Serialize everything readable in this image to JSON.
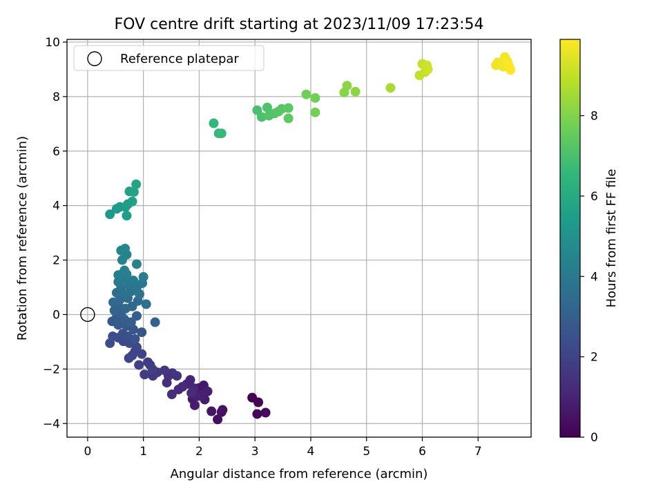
{
  "chart_data": {
    "type": "scatter",
    "title": "FOV centre drift starting at 2023/11/09 17:23:54",
    "xlabel": "Angular distance from reference (arcmin)",
    "ylabel": "Rotation from reference (arcmin)",
    "xlim": [
      -0.37,
      7.95
    ],
    "ylim": [
      -4.5,
      10.1
    ],
    "xticks": [
      0,
      1,
      2,
      3,
      4,
      5,
      6,
      7
    ],
    "yticks": [
      -4,
      -2,
      0,
      2,
      4,
      6,
      8,
      10
    ],
    "grid": true,
    "legend": {
      "position": "top-left",
      "entries": [
        {
          "label": "Reference platepar",
          "marker": "open-circle"
        }
      ]
    },
    "reference_point": {
      "x": 0,
      "y": 0
    },
    "colorbar": {
      "label": "Hours from first FF file",
      "colormap": "viridis",
      "range": [
        0,
        9.9
      ],
      "ticks": [
        0,
        2,
        4,
        6,
        8
      ]
    },
    "colormap_stops": [
      "#440154",
      "#482878",
      "#3e4989",
      "#31688e",
      "#26828e",
      "#1f9e89",
      "#35b779",
      "#6ece58",
      "#b5de2b",
      "#fde725"
    ],
    "points": [
      {
        "x": 2.95,
        "y": -3.05,
        "h": 0.0
      },
      {
        "x": 3.06,
        "y": -3.22,
        "h": 0.1
      },
      {
        "x": 3.04,
        "y": -3.65,
        "h": 0.15
      },
      {
        "x": 3.19,
        "y": -3.6,
        "h": 0.2
      },
      {
        "x": 2.33,
        "y": -3.85,
        "h": 0.4
      },
      {
        "x": 2.42,
        "y": -3.5,
        "h": 0.45
      },
      {
        "x": 2.4,
        "y": -3.58,
        "h": 0.5
      },
      {
        "x": 2.22,
        "y": -3.55,
        "h": 0.55
      },
      {
        "x": 1.99,
        "y": -2.7,
        "h": 0.6
      },
      {
        "x": 2.08,
        "y": -2.6,
        "h": 0.65
      },
      {
        "x": 1.88,
        "y": -3.1,
        "h": 0.7
      },
      {
        "x": 1.92,
        "y": -3.33,
        "h": 0.75
      },
      {
        "x": 2.1,
        "y": -3.12,
        "h": 0.8
      },
      {
        "x": 2.15,
        "y": -2.82,
        "h": 0.85
      },
      {
        "x": 2.03,
        "y": -2.95,
        "h": 0.9
      },
      {
        "x": 1.96,
        "y": -3.0,
        "h": 0.95
      },
      {
        "x": 1.84,
        "y": -2.4,
        "h": 1.0
      },
      {
        "x": 1.78,
        "y": -2.55,
        "h": 1.05
      },
      {
        "x": 1.9,
        "y": -2.7,
        "h": 1.1
      },
      {
        "x": 1.7,
        "y": -2.65,
        "h": 1.15
      },
      {
        "x": 1.63,
        "y": -2.75,
        "h": 1.2
      },
      {
        "x": 1.86,
        "y": -2.88,
        "h": 1.25
      },
      {
        "x": 1.51,
        "y": -2.93,
        "h": 1.3
      },
      {
        "x": 1.42,
        "y": -2.5,
        "h": 1.35
      },
      {
        "x": 1.45,
        "y": -2.25,
        "h": 1.4
      },
      {
        "x": 1.52,
        "y": -2.15,
        "h": 1.45
      },
      {
        "x": 1.6,
        "y": -2.25,
        "h": 1.5
      },
      {
        "x": 1.38,
        "y": -2.05,
        "h": 1.55
      },
      {
        "x": 1.25,
        "y": -2.12,
        "h": 1.6
      },
      {
        "x": 1.17,
        "y": -2.25,
        "h": 1.65
      },
      {
        "x": 1.12,
        "y": -1.85,
        "h": 1.7
      },
      {
        "x": 1.08,
        "y": -1.75,
        "h": 1.75
      },
      {
        "x": 1.02,
        "y": -2.2,
        "h": 1.8
      },
      {
        "x": 1.16,
        "y": -2.0,
        "h": 1.85
      },
      {
        "x": 0.92,
        "y": -1.85,
        "h": 1.9
      },
      {
        "x": 0.97,
        "y": -1.45,
        "h": 1.95
      },
      {
        "x": 0.85,
        "y": -1.35,
        "h": 2.0
      },
      {
        "x": 0.74,
        "y": -1.6,
        "h": 2.05
      },
      {
        "x": 0.8,
        "y": -1.5,
        "h": 2.1
      },
      {
        "x": 0.88,
        "y": -1.2,
        "h": 2.15
      },
      {
        "x": 0.75,
        "y": -1.05,
        "h": 2.2
      },
      {
        "x": 0.64,
        "y": -0.98,
        "h": 2.25
      },
      {
        "x": 0.55,
        "y": -0.85,
        "h": 2.3
      },
      {
        "x": 0.4,
        "y": -1.05,
        "h": 2.35
      },
      {
        "x": 0.45,
        "y": -0.8,
        "h": 2.4
      },
      {
        "x": 0.63,
        "y": -0.7,
        "h": 2.45
      },
      {
        "x": 0.72,
        "y": -0.8,
        "h": 2.5
      },
      {
        "x": 0.85,
        "y": -0.9,
        "h": 2.55
      },
      {
        "x": 0.97,
        "y": -0.65,
        "h": 2.6
      },
      {
        "x": 0.82,
        "y": -0.55,
        "h": 2.65
      },
      {
        "x": 0.7,
        "y": -0.42,
        "h": 2.7
      },
      {
        "x": 0.55,
        "y": -0.38,
        "h": 2.75
      },
      {
        "x": 0.44,
        "y": -0.25,
        "h": 2.8
      },
      {
        "x": 0.52,
        "y": -0.1,
        "h": 2.85
      },
      {
        "x": 0.66,
        "y": -0.18,
        "h": 2.9
      },
      {
        "x": 0.78,
        "y": -0.28,
        "h": 2.95
      },
      {
        "x": 0.88,
        "y": -0.05,
        "h": 3.0
      },
      {
        "x": 1.21,
        "y": -0.28,
        "h": 3.05
      },
      {
        "x": 0.6,
        "y": 0.05,
        "h": 3.1
      },
      {
        "x": 0.48,
        "y": 0.15,
        "h": 3.15
      },
      {
        "x": 0.55,
        "y": 0.35,
        "h": 3.2
      },
      {
        "x": 0.68,
        "y": 0.22,
        "h": 3.25
      },
      {
        "x": 0.8,
        "y": 0.3,
        "h": 3.3
      },
      {
        "x": 0.46,
        "y": 0.45,
        "h": 3.35
      },
      {
        "x": 0.58,
        "y": 0.55,
        "h": 3.4
      },
      {
        "x": 0.72,
        "y": 0.6,
        "h": 3.45
      },
      {
        "x": 0.9,
        "y": 0.5,
        "h": 3.5
      },
      {
        "x": 1.05,
        "y": 0.38,
        "h": 3.55
      },
      {
        "x": 0.52,
        "y": 0.8,
        "h": 3.6
      },
      {
        "x": 0.66,
        "y": 0.75,
        "h": 3.65
      },
      {
        "x": 0.78,
        "y": 0.85,
        "h": 3.7
      },
      {
        "x": 0.93,
        "y": 0.75,
        "h": 3.75
      },
      {
        "x": 0.6,
        "y": 1.0,
        "h": 3.8
      },
      {
        "x": 0.75,
        "y": 1.05,
        "h": 3.85
      },
      {
        "x": 0.88,
        "y": 1.0,
        "h": 3.9
      },
      {
        "x": 0.98,
        "y": 1.15,
        "h": 3.95
      },
      {
        "x": 0.55,
        "y": 1.2,
        "h": 4.0
      },
      {
        "x": 0.68,
        "y": 1.3,
        "h": 4.05
      },
      {
        "x": 0.82,
        "y": 1.25,
        "h": 4.1
      },
      {
        "x": 1.0,
        "y": 1.38,
        "h": 4.15
      },
      {
        "x": 0.55,
        "y": 1.45,
        "h": 4.2
      },
      {
        "x": 0.7,
        "y": 1.48,
        "h": 4.25
      },
      {
        "x": 0.66,
        "y": 1.62,
        "h": 4.3
      },
      {
        "x": 0.88,
        "y": 1.85,
        "h": 4.35
      },
      {
        "x": 0.62,
        "y": 2.0,
        "h": 4.4
      },
      {
        "x": 0.7,
        "y": 2.2,
        "h": 4.45
      },
      {
        "x": 0.6,
        "y": 2.35,
        "h": 4.5
      },
      {
        "x": 0.67,
        "y": 2.42,
        "h": 4.55
      },
      {
        "x": 0.4,
        "y": 3.68,
        "h": 5.3
      },
      {
        "x": 0.52,
        "y": 3.88,
        "h": 5.35
      },
      {
        "x": 0.58,
        "y": 3.95,
        "h": 5.4
      },
      {
        "x": 0.68,
        "y": 3.95,
        "h": 5.45
      },
      {
        "x": 0.7,
        "y": 3.63,
        "h": 5.5
      },
      {
        "x": 0.72,
        "y": 4.05,
        "h": 5.55
      },
      {
        "x": 0.8,
        "y": 4.15,
        "h": 5.6
      },
      {
        "x": 0.75,
        "y": 4.52,
        "h": 5.65
      },
      {
        "x": 0.83,
        "y": 4.5,
        "h": 5.7
      },
      {
        "x": 0.87,
        "y": 4.78,
        "h": 5.75
      },
      {
        "x": 2.26,
        "y": 7.02,
        "h": 6.55
      },
      {
        "x": 2.35,
        "y": 6.65,
        "h": 6.6
      },
      {
        "x": 2.4,
        "y": 6.65,
        "h": 6.65
      },
      {
        "x": 3.04,
        "y": 7.5,
        "h": 7.0
      },
      {
        "x": 3.12,
        "y": 7.25,
        "h": 7.05
      },
      {
        "x": 3.22,
        "y": 7.6,
        "h": 7.1
      },
      {
        "x": 3.25,
        "y": 7.3,
        "h": 7.15
      },
      {
        "x": 3.35,
        "y": 7.38,
        "h": 7.2
      },
      {
        "x": 3.42,
        "y": 7.45,
        "h": 7.25
      },
      {
        "x": 3.48,
        "y": 7.55,
        "h": 7.3
      },
      {
        "x": 3.6,
        "y": 7.58,
        "h": 7.35
      },
      {
        "x": 3.6,
        "y": 7.2,
        "h": 7.4
      },
      {
        "x": 3.92,
        "y": 8.08,
        "h": 7.7
      },
      {
        "x": 4.08,
        "y": 7.95,
        "h": 7.75
      },
      {
        "x": 4.08,
        "y": 7.42,
        "h": 7.8
      },
      {
        "x": 4.6,
        "y": 8.15,
        "h": 8.1
      },
      {
        "x": 4.65,
        "y": 8.4,
        "h": 8.15
      },
      {
        "x": 4.8,
        "y": 8.18,
        "h": 8.2
      },
      {
        "x": 5.43,
        "y": 8.32,
        "h": 8.6
      },
      {
        "x": 5.95,
        "y": 8.78,
        "h": 9.0
      },
      {
        "x": 6.0,
        "y": 9.2,
        "h": 9.05
      },
      {
        "x": 6.05,
        "y": 8.9,
        "h": 9.1
      },
      {
        "x": 6.08,
        "y": 9.15,
        "h": 9.15
      },
      {
        "x": 6.1,
        "y": 9.0,
        "h": 9.2
      },
      {
        "x": 7.32,
        "y": 9.15,
        "h": 9.6
      },
      {
        "x": 7.35,
        "y": 9.25,
        "h": 9.65
      },
      {
        "x": 7.45,
        "y": 9.1,
        "h": 9.7
      },
      {
        "x": 7.48,
        "y": 9.45,
        "h": 9.75
      },
      {
        "x": 7.52,
        "y": 9.3,
        "h": 9.8
      },
      {
        "x": 7.55,
        "y": 9.15,
        "h": 9.85
      },
      {
        "x": 7.58,
        "y": 8.98,
        "h": 9.9
      }
    ]
  }
}
